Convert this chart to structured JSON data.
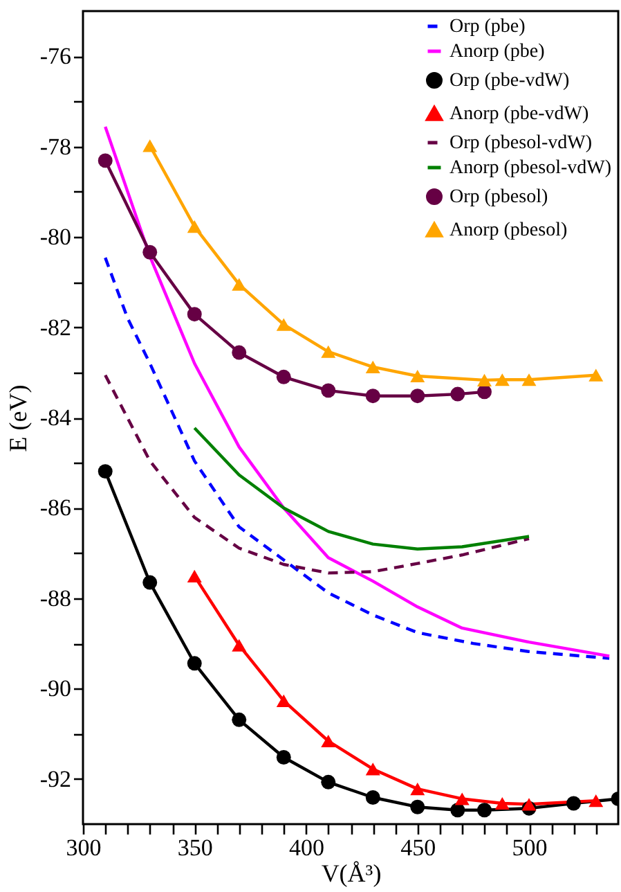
{
  "chart_data": {
    "type": "line",
    "xlabel": "V(Å³)",
    "ylabel": "E (eV)",
    "xlim": [
      300,
      540
    ],
    "ylim": [
      -93,
      -75
    ],
    "xticks": [
      300,
      {
        "value": 310,
        "label": null
      },
      {
        "value": 320,
        "label": null
      },
      {
        "value": 330,
        "label": null
      },
      {
        "value": 340,
        "label": null
      },
      350,
      {
        "value": 360,
        "label": null
      },
      {
        "value": 370,
        "label": null
      },
      {
        "value": 380,
        "label": null
      },
      {
        "value": 390,
        "label": null
      },
      400,
      {
        "value": 410,
        "label": null
      },
      {
        "value": 420,
        "label": null
      },
      {
        "value": 430,
        "label": null
      },
      {
        "value": 440,
        "label": null
      },
      450,
      {
        "value": 460,
        "label": null
      },
      {
        "value": 470,
        "label": null
      },
      {
        "value": 480,
        "label": null
      },
      {
        "value": 490,
        "label": null
      },
      500,
      {
        "value": 510,
        "label": null
      },
      {
        "value": 520,
        "label": null
      },
      {
        "value": 530,
        "label": null
      }
    ],
    "yticks": [
      -92,
      {
        "value": -91,
        "label": null
      },
      -90,
      {
        "value": -89,
        "label": null
      },
      -88,
      {
        "value": -87,
        "label": null
      },
      -86,
      {
        "value": -85,
        "label": null
      },
      -84,
      {
        "value": -83,
        "label": null
      },
      -82,
      {
        "value": -81,
        "label": null
      },
      -80,
      {
        "value": -79,
        "label": null
      },
      -78,
      {
        "value": -77,
        "label": null
      },
      -76
    ],
    "grid": false,
    "legend": "top right",
    "series": [
      {
        "name": "Orp (pbe)",
        "color": "#0000ff",
        "marker": "none",
        "line_style": "dashed",
        "x": [
          310,
          320,
          330,
          350,
          370,
          390,
          410,
          430,
          450,
          475,
          500,
          536
        ],
        "values": [
          -80.46,
          -81.8,
          -82.8,
          -84.96,
          -86.42,
          -87.15,
          -87.88,
          -88.37,
          -88.76,
          -89.0,
          -89.18,
          -89.33
        ]
      },
      {
        "name": "Anorp (pbe)",
        "color": "#ff00ff",
        "marker": "none",
        "line_style": "solid",
        "x": [
          310,
          330,
          350,
          370,
          390,
          410,
          430,
          450,
          470,
          500,
          536
        ],
        "values": [
          -77.56,
          -80.43,
          -82.8,
          -84.65,
          -86.0,
          -87.1,
          -87.62,
          -88.19,
          -88.66,
          -88.97,
          -89.28
        ]
      },
      {
        "name": "Orp (pbe-vdW)",
        "color": "#000000",
        "marker": "circle",
        "line_style": "solid",
        "x": [
          310,
          330,
          350,
          370,
          390,
          410,
          430,
          450,
          468,
          480,
          500,
          520,
          540
        ],
        "values": [
          -85.19,
          -87.65,
          -89.44,
          -90.69,
          -91.52,
          -92.07,
          -92.41,
          -92.62,
          -92.69,
          -92.69,
          -92.65,
          -92.54,
          -92.44
        ]
      },
      {
        "name": "Anorp (pbe-vdW)",
        "color": "#ff0000",
        "marker": "triangle",
        "line_style": "solid",
        "x": [
          350,
          370,
          390,
          410,
          430,
          450,
          470,
          488,
          500,
          530
        ],
        "values": [
          -87.51,
          -89.04,
          -90.27,
          -91.16,
          -91.78,
          -92.22,
          -92.44,
          -92.54,
          -92.56,
          -92.48
        ]
      },
      {
        "name": "Orp (pbesol-vdW)",
        "color": "#660044",
        "marker": "none",
        "line_style": "dashed",
        "x": [
          310,
          330,
          350,
          370,
          390,
          410,
          430,
          450,
          470,
          500
        ],
        "values": [
          -83.06,
          -84.96,
          -86.21,
          -86.89,
          -87.25,
          -87.44,
          -87.41,
          -87.23,
          -87.04,
          -86.68
        ]
      },
      {
        "name": "Anorp (pbesol-vdW)",
        "color": "#008000",
        "marker": "none",
        "line_style": "solid",
        "x": [
          350,
          370,
          390,
          410,
          430,
          450,
          470,
          500
        ],
        "values": [
          -84.23,
          -85.27,
          -86.0,
          -86.52,
          -86.8,
          -86.91,
          -86.86,
          -86.63
        ]
      },
      {
        "name": "Orp (pbesol)",
        "color": "#660044",
        "marker": "circle",
        "line_style": "solid",
        "x": [
          310,
          330,
          350,
          370,
          390,
          410,
          430,
          450,
          468,
          480
        ],
        "values": [
          -78.31,
          -80.34,
          -81.71,
          -82.56,
          -83.1,
          -83.4,
          -83.52,
          -83.52,
          -83.48,
          -83.43
        ]
      },
      {
        "name": "Anorp (pbesol)",
        "color": "#ffa500",
        "marker": "triangle",
        "line_style": "solid",
        "x": [
          330,
          350,
          370,
          390,
          410,
          430,
          450,
          480,
          488,
          500,
          530
        ],
        "values": [
          -77.98,
          -79.77,
          -81.05,
          -81.94,
          -82.54,
          -82.88,
          -83.08,
          -83.17,
          -83.16,
          -83.16,
          -83.06
        ]
      }
    ]
  }
}
